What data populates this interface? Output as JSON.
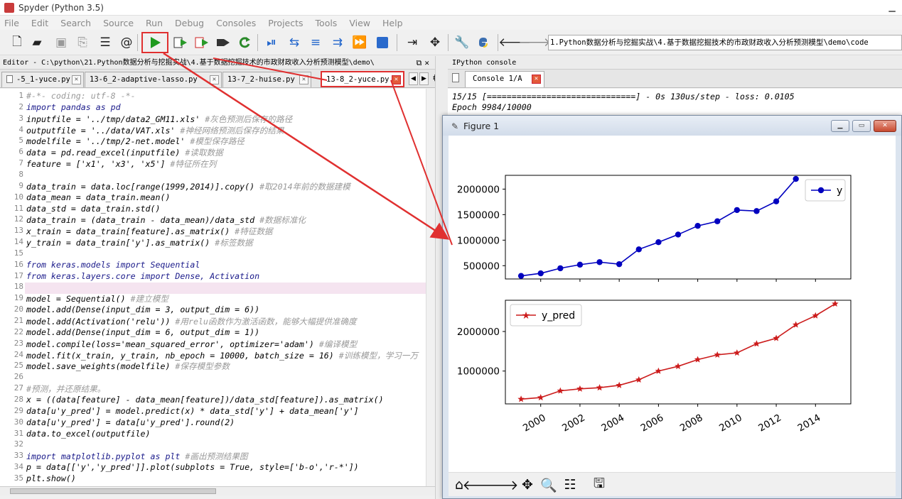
{
  "window": {
    "title": "Spyder (Python 3.5)"
  },
  "menu": [
    "File",
    "Edit",
    "Search",
    "Source",
    "Run",
    "Debug",
    "Consoles",
    "Projects",
    "Tools",
    "View",
    "Help"
  ],
  "toolbar": {
    "path": "1.Python数据分析与挖掘实战\\4.基于数据挖掘技术的市政财政收入分析预测模型\\demo\\code"
  },
  "editor": {
    "header": "Editor - C:\\python\\21.Python数据分析与挖掘实战\\4.基于数据挖掘技术的市政财政收入分析预测模型\\demo\\",
    "tabs": [
      {
        "label": "-5_1-yuce.py"
      },
      {
        "label": "13-6_2-adaptive-lasso.py"
      },
      {
        "label": "13-7_2-huise.py"
      },
      {
        "label": "13-8_2-yuce.py",
        "active": true
      }
    ],
    "lines": [
      "#-*- coding: utf-8 -*-",
      "import pandas as pd",
      "inputfile = '../tmp/data2_GM11.xls' #灰色预测后保存的路径",
      "outputfile = '../data/VAT.xls' #神经网络预测后保存的结果",
      "modelfile = '../tmp/2-net.model' #模型保存路径",
      "data = pd.read_excel(inputfile) #读取数据",
      "feature = ['x1', 'x3', 'x5'] #特征所在列",
      "",
      "data_train = data.loc[range(1999,2014)].copy() #取2014年前的数据建模",
      "data_mean = data_train.mean()",
      "data_std = data_train.std()",
      "data_train = (data_train - data_mean)/data_std #数据标准化",
      "x_train = data_train[feature].as_matrix() #特征数据",
      "y_train = data_train['y'].as_matrix() #标签数据",
      "",
      "from keras.models import Sequential",
      "from keras.layers.core import Dense, Activation",
      "",
      "model = Sequential() #建立模型",
      "model.add(Dense(input_dim = 3, output_dim = 6))",
      "model.add(Activation('relu')) #用relu函数作为激活函数，能够大幅提供准确度",
      "model.add(Dense(input_dim = 6, output_dim = 1))",
      "model.compile(loss='mean_squared_error', optimizer='adam') #编译模型",
      "model.fit(x_train, y_train, nb_epoch = 10000, batch_size = 16) #训练模型，学习一万",
      "model.save_weights(modelfile) #保存模型参数",
      "",
      "#预测，并还原结果。",
      "x = ((data[feature] - data_mean[feature])/data_std[feature]).as_matrix()",
      "data[u'y_pred'] = model.predict(x) * data_std['y'] + data_mean['y']",
      "data[u'y_pred'] = data[u'y_pred'].round(2)",
      "data.to_excel(outputfile)",
      "",
      "import matplotlib.pyplot as plt #画出预测结果图",
      "p = data[['y','y_pred']].plot(subplots = True, style=['b-o','r-*'])",
      "plt.show()"
    ]
  },
  "console": {
    "header": "IPython console",
    "tab": "Console 1/A",
    "lines": [
      "15/15 [==============================] - 0s 130us/step - loss: 0.0105",
      "Epoch 9984/10000"
    ]
  },
  "figure": {
    "title": "Figure 1"
  },
  "colors": {
    "series_y": "#0000bf",
    "series_pred": "#cc1c1c",
    "highlight_box": "#e03030"
  },
  "chart_data": [
    {
      "type": "line",
      "x": [
        1999,
        2000,
        2001,
        2002,
        2003,
        2004,
        2005,
        2006,
        2007,
        2008,
        2009,
        2010,
        2011,
        2012,
        2013
      ],
      "series": [
        {
          "name": "y",
          "marker": "o",
          "values": [
            300000,
            350000,
            450000,
            520000,
            570000,
            530000,
            820000,
            960000,
            1110000,
            1280000,
            1370000,
            1590000,
            1570000,
            1760000,
            2200000
          ]
        }
      ],
      "yticks": [
        "500000",
        "1000000",
        "1500000",
        "2000000"
      ],
      "ylim": [
        240000,
        2270000
      ],
      "xlim": [
        1998.2,
        2015.8
      ],
      "legend": "top-right"
    },
    {
      "type": "line",
      "x": [
        1999,
        2000,
        2001,
        2002,
        2003,
        2004,
        2005,
        2006,
        2007,
        2008,
        2009,
        2010,
        2011,
        2012,
        2013,
        2014,
        2015
      ],
      "series": [
        {
          "name": "y_pred",
          "marker": "*",
          "values": [
            290000,
            330000,
            500000,
            550000,
            580000,
            640000,
            780000,
            1000000,
            1120000,
            1290000,
            1410000,
            1460000,
            1690000,
            1830000,
            2170000,
            2400000,
            2700000
          ]
        }
      ],
      "yticks": [
        "1000000",
        "2000000"
      ],
      "ylim": [
        170000,
        2790000
      ],
      "xlim": [
        1998.2,
        2015.8
      ],
      "xticks": [
        "2000",
        "2002",
        "2004",
        "2006",
        "2008",
        "2010",
        "2012",
        "2014"
      ],
      "legend": "top-left"
    }
  ]
}
